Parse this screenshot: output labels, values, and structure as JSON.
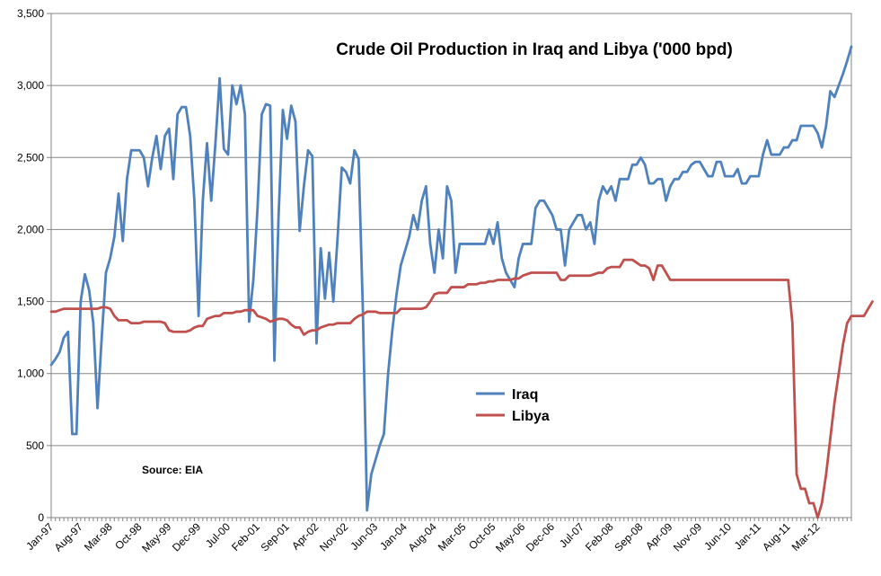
{
  "chart_data": {
    "type": "line",
    "title": "Crude Oil Production in Iraq and Libya ('000 bpd)",
    "source_note": "Source: EIA",
    "xlabel": "",
    "ylabel": "",
    "ylim": [
      0,
      3500
    ],
    "y_ticks": [
      "0",
      "500",
      "1,000",
      "1,500",
      "2,000",
      "2,500",
      "3,000",
      "3,500"
    ],
    "x_start": "Jan-97",
    "x_tick_labels": [
      "Jan-97",
      "Aug-97",
      "Mar-98",
      "Oct-98",
      "May-99",
      "Dec-99",
      "Jul-00",
      "Feb-01",
      "Sep-01",
      "Apr-02",
      "Nov-02",
      "Jun-03",
      "Jan-04",
      "Aug-04",
      "Mar-05",
      "Oct-05",
      "May-06",
      "Dec-06",
      "Jul-07",
      "Feb-08",
      "Sep-08",
      "Apr-09",
      "Nov-09",
      "Jun-10",
      "Jan-11",
      "Aug-11",
      "Mar-12"
    ],
    "grid": true,
    "legend_position": "center",
    "series": [
      {
        "name": "Iraq",
        "color": "#4F81BD",
        "values": [
          1060,
          1100,
          1150,
          1250,
          1290,
          580,
          580,
          1500,
          1690,
          1580,
          1350,
          760,
          1250,
          1700,
          1800,
          1950,
          2250,
          1920,
          2350,
          2550,
          2550,
          2550,
          2500,
          2300,
          2500,
          2650,
          2420,
          2650,
          2700,
          2350,
          2800,
          2850,
          2850,
          2650,
          2200,
          1400,
          2200,
          2600,
          2200,
          2600,
          3050,
          2560,
          2520,
          3000,
          2870,
          3000,
          2800,
          1360,
          1650,
          2150,
          2800,
          2870,
          2860,
          1090,
          2100,
          2830,
          2630,
          2860,
          2750,
          1990,
          2300,
          2550,
          2510,
          1210,
          1870,
          1520,
          1840,
          1500,
          1940,
          2430,
          2400,
          2320,
          2550,
          2490,
          1450,
          50,
          300,
          400,
          500,
          580,
          1000,
          1300,
          1550,
          1750,
          1850,
          1950,
          2100,
          2000,
          2200,
          2300,
          1900,
          1700,
          2000,
          1800,
          2300,
          2200,
          1700,
          1900,
          1900,
          1900,
          1900,
          1900,
          1900,
          1900,
          2000,
          1900,
          2050,
          1800,
          1700,
          1650,
          1600,
          1800,
          1900,
          1900,
          1900,
          2150,
          2200,
          2200,
          2150,
          2100,
          2000,
          2000,
          1750,
          2000,
          2050,
          2100,
          2100,
          2000,
          2050,
          1900,
          2200,
          2300,
          2250,
          2300,
          2200,
          2350,
          2350,
          2350,
          2450,
          2450,
          2500,
          2450,
          2320,
          2320,
          2350,
          2350,
          2200,
          2300,
          2350,
          2350,
          2400,
          2400,
          2450,
          2470,
          2470,
          2420,
          2370,
          2370,
          2470,
          2470,
          2370,
          2370,
          2370,
          2420,
          2320,
          2320,
          2370,
          2370,
          2370,
          2520,
          2620,
          2520,
          2520,
          2520,
          2570,
          2570,
          2620,
          2620,
          2720,
          2720,
          2720,
          2720,
          2670,
          2570,
          2720,
          2960,
          2920,
          3000,
          3080,
          3170,
          3270
        ]
      },
      {
        "name": "Libya",
        "color": "#C0504D",
        "values": [
          1430,
          1430,
          1440,
          1450,
          1450,
          1450,
          1450,
          1450,
          1450,
          1450,
          1450,
          1450,
          1460,
          1460,
          1450,
          1400,
          1370,
          1370,
          1370,
          1350,
          1350,
          1350,
          1360,
          1360,
          1360,
          1360,
          1360,
          1350,
          1300,
          1290,
          1290,
          1290,
          1290,
          1300,
          1320,
          1330,
          1330,
          1380,
          1390,
          1400,
          1400,
          1420,
          1420,
          1420,
          1430,
          1430,
          1440,
          1440,
          1440,
          1400,
          1390,
          1380,
          1360,
          1370,
          1380,
          1380,
          1370,
          1340,
          1320,
          1320,
          1270,
          1290,
          1300,
          1300,
          1320,
          1330,
          1340,
          1340,
          1350,
          1350,
          1350,
          1350,
          1380,
          1400,
          1410,
          1430,
          1430,
          1430,
          1420,
          1420,
          1420,
          1420,
          1420,
          1450,
          1450,
          1450,
          1450,
          1450,
          1450,
          1460,
          1500,
          1550,
          1560,
          1560,
          1560,
          1600,
          1600,
          1600,
          1600,
          1620,
          1620,
          1620,
          1630,
          1630,
          1640,
          1640,
          1650,
          1650,
          1650,
          1650,
          1660,
          1660,
          1680,
          1690,
          1700,
          1700,
          1700,
          1700,
          1700,
          1700,
          1700,
          1650,
          1650,
          1680,
          1680,
          1680,
          1680,
          1680,
          1680,
          1690,
          1700,
          1700,
          1730,
          1740,
          1740,
          1740,
          1790,
          1790,
          1790,
          1770,
          1750,
          1750,
          1730,
          1650,
          1750,
          1750,
          1700,
          1650,
          1650,
          1650,
          1650,
          1650,
          1650,
          1650,
          1650,
          1650,
          1650,
          1650,
          1650,
          1650,
          1650,
          1650,
          1650,
          1650,
          1650,
          1650,
          1650,
          1650,
          1650,
          1650,
          1650,
          1650,
          1650,
          1650,
          1650,
          1650,
          1350,
          300,
          200,
          200,
          100,
          100,
          0,
          100,
          300,
          550,
          800,
          1000,
          1200,
          1350,
          1400,
          1400,
          1400,
          1400,
          1450,
          1500
        ]
      }
    ]
  }
}
